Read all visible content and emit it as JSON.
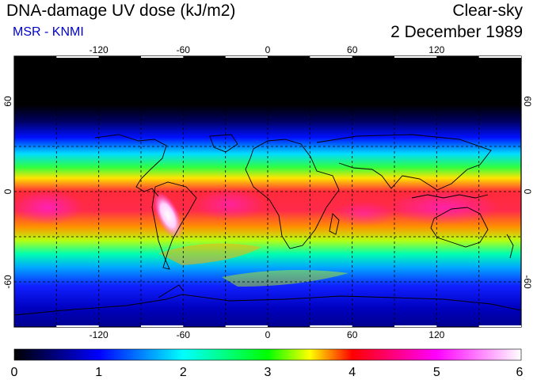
{
  "header": {
    "title": "DNA-damage UV dose (kJ/m2)",
    "source": "MSR - KNMI",
    "condition": "Clear-sky",
    "date": "2 December 1989"
  },
  "map": {
    "lon_ticks": [
      -120,
      -60,
      0,
      60,
      120
    ],
    "lat_ticks": [
      60,
      0,
      -60
    ],
    "lon_tick_labels": [
      "-120",
      "-60",
      "0",
      "60",
      "120"
    ],
    "lat_tick_labels": [
      "60",
      "0",
      "-60"
    ],
    "lon_range": [
      -180,
      180
    ],
    "lat_range": [
      -90,
      90
    ],
    "grid_spacing_deg": 30
  },
  "colorbar": {
    "min": 0,
    "max": 6,
    "labels": [
      "0",
      "1",
      "2",
      "3",
      "4",
      "5",
      "6"
    ],
    "stops": [
      "#000000",
      "#0000ff",
      "#00ffff",
      "#00ff00",
      "#ffff00",
      "#ff0000",
      "#ff00ff",
      "#ffffff"
    ]
  }
}
